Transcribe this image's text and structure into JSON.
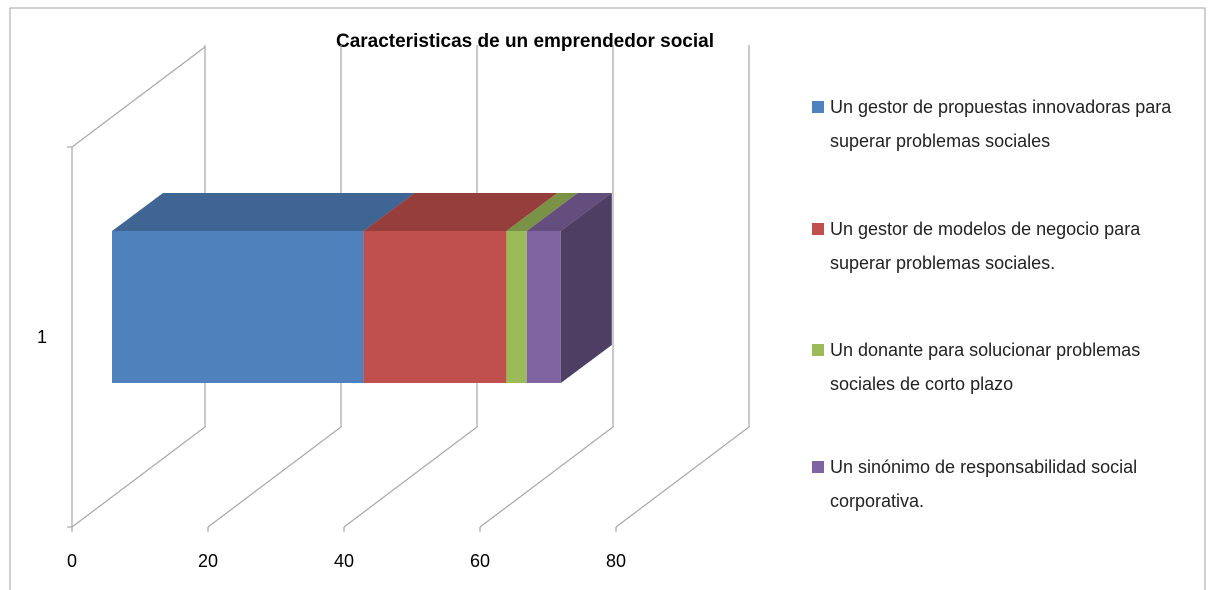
{
  "chart_data": {
    "type": "bar",
    "orientation": "horizontal",
    "stacked": true,
    "three_d": true,
    "title": "Caracteristicas de un emprendedor social",
    "categories": [
      "1"
    ],
    "series": [
      {
        "name": "Un gestor de propuestas innovadoras para superar problemas sociales",
        "color": "#4f81bd",
        "values": [
          37
        ]
      },
      {
        "name": "Un gestor de modelos de negocio para superar problemas sociales.",
        "color": "#c0504d",
        "values": [
          21
        ]
      },
      {
        "name": "Un donante para solucionar problemas sociales de corto plazo",
        "color": "#9bbb59",
        "values": [
          3
        ]
      },
      {
        "name": "Un sinónimo de responsabilidad social corporativa.",
        "color": "#8064a2",
        "values": [
          5
        ]
      }
    ],
    "xlim": [
      0,
      80
    ],
    "xticks": [
      0,
      20,
      40,
      60,
      80
    ],
    "grid": true,
    "legend": "right"
  }
}
